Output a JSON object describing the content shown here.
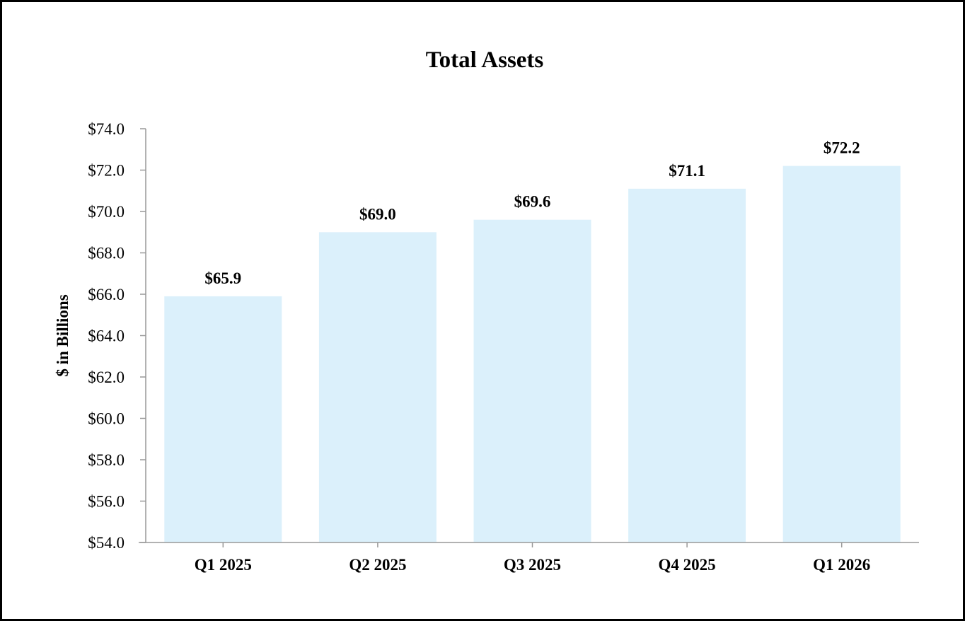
{
  "chart_data": {
    "type": "bar",
    "title": "Total Assets",
    "xlabel": "",
    "ylabel": "$ in Billions",
    "categories": [
      "Q1 2025",
      "Q2 2025",
      "Q3 2025",
      "Q4 2025",
      "Q1 2026"
    ],
    "values": [
      65.9,
      69.0,
      69.6,
      71.1,
      72.2
    ],
    "data_labels": [
      "$65.9",
      "$69.0",
      "$69.6",
      "$71.1",
      "$72.2"
    ],
    "ylim": [
      54.0,
      74.0
    ],
    "yticks": [
      54.0,
      56.0,
      58.0,
      60.0,
      62.0,
      64.0,
      66.0,
      68.0,
      70.0,
      72.0,
      74.0
    ],
    "ytick_labels": [
      "$54.0",
      "$56.0",
      "$58.0",
      "$60.0",
      "$62.0",
      "$64.0",
      "$66.0",
      "$68.0",
      "$70.0",
      "$72.0",
      "$74.0"
    ],
    "grid": false,
    "legend": "none",
    "bar_color": "#dbf0fb",
    "axis_color": "#999999"
  }
}
